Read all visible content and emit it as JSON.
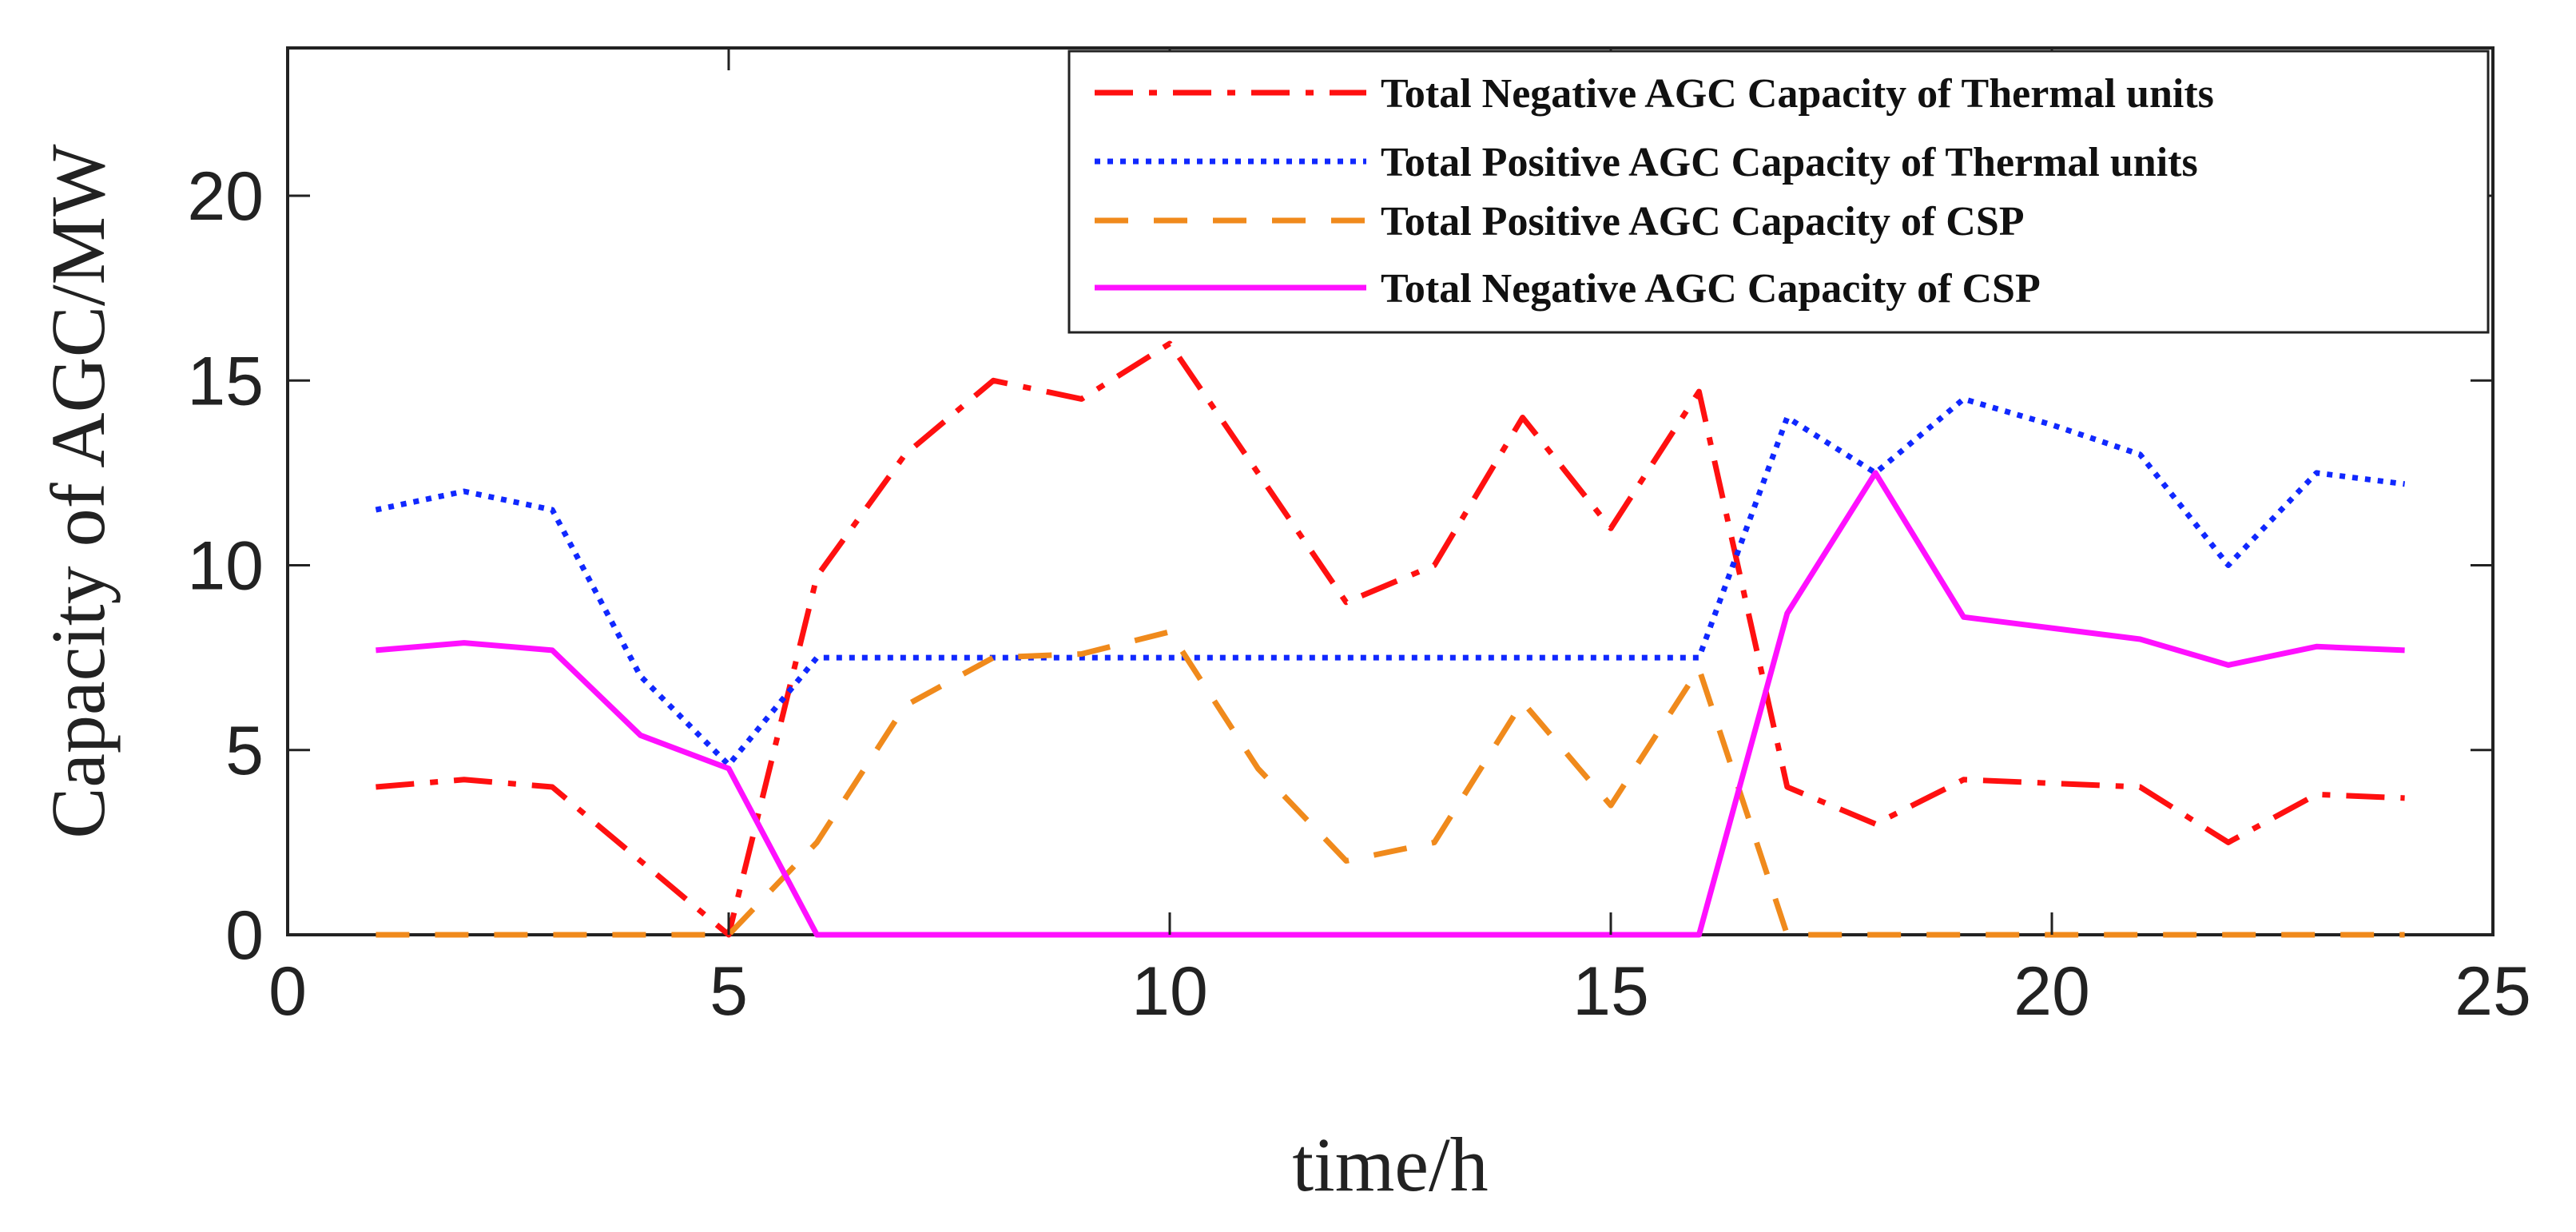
{
  "chart_data": {
    "type": "line",
    "title": "",
    "xlabel": "time/h",
    "ylabel": "Capacity of AGC/MW",
    "xlim": [
      0,
      25
    ],
    "ylim": [
      0,
      24
    ],
    "xticks": [
      0,
      5,
      10,
      15,
      20,
      25
    ],
    "yticks": [
      0,
      5,
      10,
      15,
      20
    ],
    "grid": false,
    "legend_position": "top-right",
    "x": [
      1,
      2,
      3,
      4,
      5,
      6,
      7,
      8,
      9,
      10,
      11,
      12,
      13,
      14,
      15,
      16,
      17,
      18,
      19,
      20,
      21,
      22,
      23,
      24
    ],
    "series": [
      {
        "name": "Total Negative AGC Capacity of Thermal units",
        "color": "#ff1010",
        "style": "dashdot",
        "values": [
          4,
          4.2,
          4,
          2,
          0,
          9.7,
          13,
          15,
          14.5,
          16,
          12.5,
          9,
          10,
          14,
          11,
          14.7,
          4,
          3,
          4.2,
          4.1,
          4,
          2.5,
          3.8,
          3.7
        ]
      },
      {
        "name": "Total Positive AGC Capacity of Thermal units",
        "color": "#1028ff",
        "style": "dotted",
        "values": [
          11.5,
          12,
          11.5,
          7,
          4.6,
          7.5,
          7.5,
          7.5,
          7.5,
          7.5,
          7.5,
          7.5,
          7.5,
          7.5,
          7.5,
          7.5,
          14,
          12.5,
          14.5,
          13.8,
          13,
          10,
          12.5,
          12.2
        ]
      },
      {
        "name": "Total Positive AGC Capacity of CSP",
        "color": "#f08a1c",
        "style": "dashed",
        "values": [
          0,
          0,
          0,
          0,
          0,
          2.5,
          6.2,
          7.5,
          7.6,
          8.2,
          4.5,
          2,
          2.5,
          6.3,
          3.5,
          7.2,
          0,
          0,
          0,
          0,
          0,
          0,
          0,
          0
        ]
      },
      {
        "name": "Total Negative AGC Capacity of CSP",
        "color": "#ff10ff",
        "style": "solid",
        "values": [
          7.7,
          7.9,
          7.7,
          5.4,
          4.5,
          0,
          0,
          0,
          0,
          0,
          0,
          0,
          0,
          0,
          0,
          0,
          8.7,
          12.5,
          8.6,
          8.3,
          8,
          7.3,
          7.8,
          7.7
        ]
      }
    ]
  }
}
